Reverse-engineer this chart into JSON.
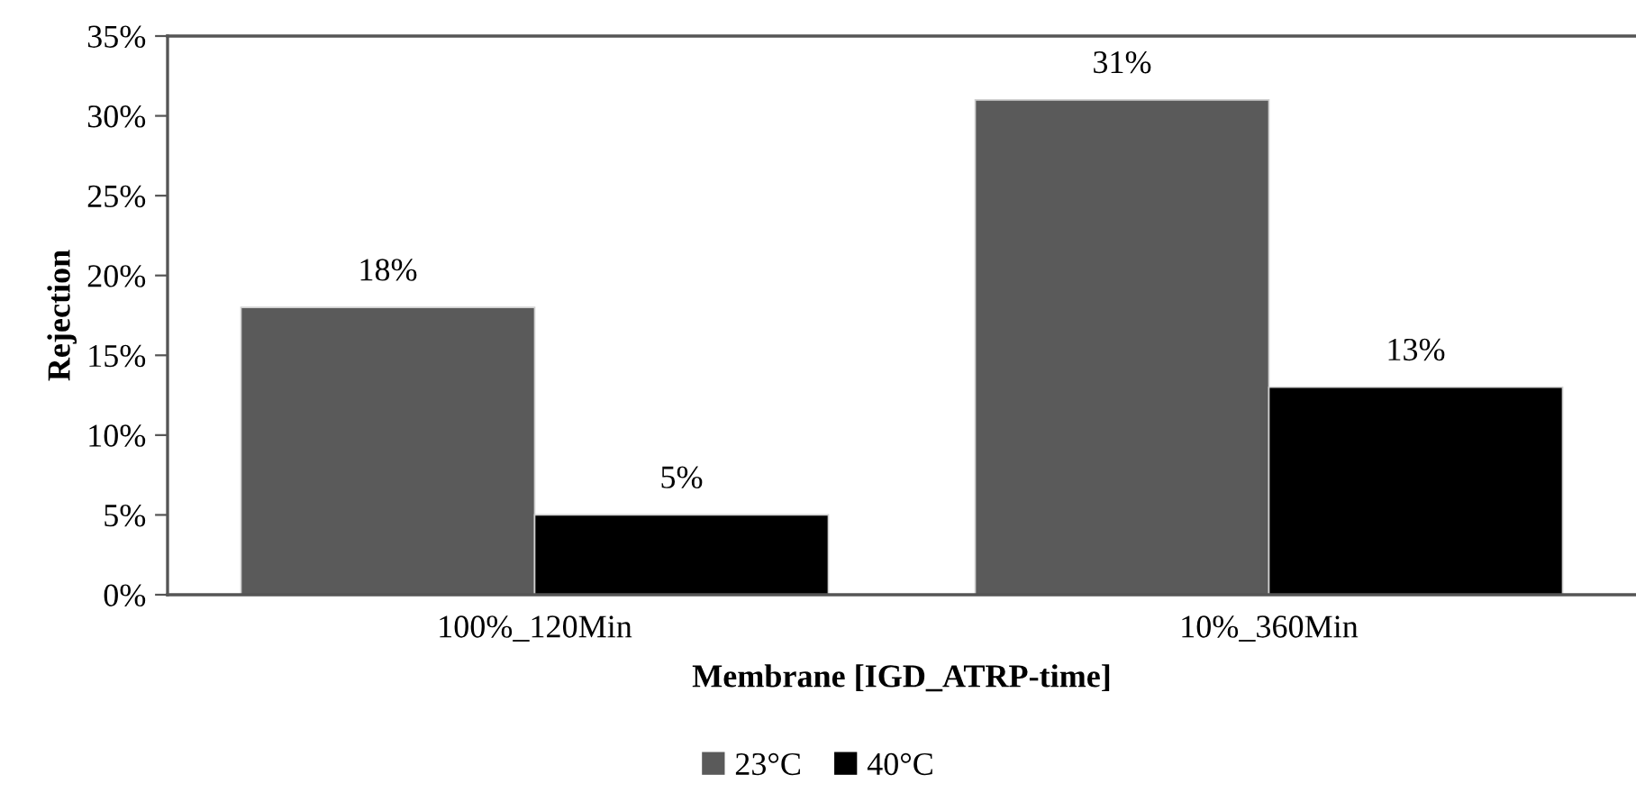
{
  "chart_data": {
    "type": "bar",
    "xlabel": "Membrane [IGD_ATRP-time]",
    "ylabel": "Rejection",
    "categories": [
      "100%_120Min",
      "10%_360Min"
    ],
    "series": [
      {
        "name": "23°C",
        "color": "#5a5a5a",
        "values": [
          18,
          31
        ],
        "value_labels": [
          "18%",
          "31%"
        ]
      },
      {
        "name": "40°C",
        "color": "#000000",
        "values": [
          5,
          13
        ],
        "value_labels": [
          "5%",
          "13%"
        ]
      }
    ],
    "ylim": [
      0,
      35
    ],
    "yticks": [
      {
        "value": 0,
        "label": "0%"
      },
      {
        "value": 5,
        "label": "5%"
      },
      {
        "value": 10,
        "label": "10%"
      },
      {
        "value": 15,
        "label": "15%"
      },
      {
        "value": 20,
        "label": "20%"
      },
      {
        "value": 25,
        "label": "25%"
      },
      {
        "value": 30,
        "label": "30%"
      },
      {
        "value": 35,
        "label": "35%"
      }
    ],
    "grid": false,
    "legend": "bottom"
  }
}
